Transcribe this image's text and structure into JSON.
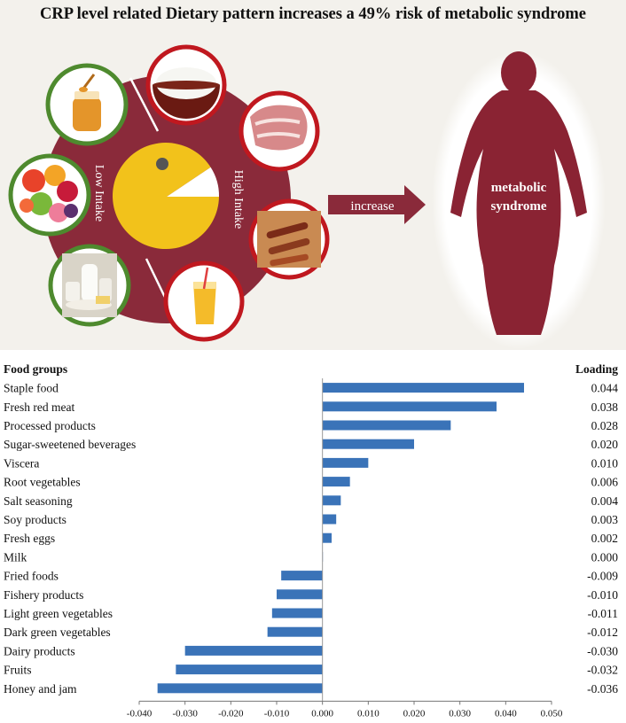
{
  "title": "CRP level related Dietary pattern increases a 49% risk of metabolic syndrome",
  "illustration": {
    "low_intake_label": "Low Intake",
    "high_intake_label": "High Intake",
    "arrow_label": "increase",
    "outcome_label": [
      "metabolic",
      "syndrome"
    ],
    "colors": {
      "wheel": "#8a2a3a",
      "pie": "#f2c21b",
      "low_ring": "#4e8a2e",
      "high_ring": "#c0181f",
      "figure": "#8a2333"
    },
    "low_intake_icons": [
      "honey-jar-icon",
      "fruit-bowl-icon",
      "dairy-icon"
    ],
    "high_intake_icons": [
      "rice-bowl-icon",
      "red-meat-icon",
      "processed-meat-icon",
      "juice-glass-icon"
    ]
  },
  "chart_data": {
    "type": "bar",
    "orientation": "horizontal",
    "row_header": "Food groups",
    "value_header": "Loading",
    "categories": [
      "Staple food",
      "Fresh red meat",
      "Processed products",
      "Sugar-sweetened beverages",
      "Viscera",
      "Root vegetables",
      "Salt seasoning",
      "Soy products",
      "Fresh eggs",
      "Milk",
      "Fried foods",
      "Fishery products",
      "Light green vegetables",
      "Dark green vegetables",
      "Dairy products",
      "Fruits",
      "Honey and jam"
    ],
    "values": [
      0.044,
      0.038,
      0.028,
      0.02,
      0.01,
      0.006,
      0.004,
      0.003,
      0.002,
      0.0,
      -0.009,
      -0.01,
      -0.011,
      -0.012,
      -0.03,
      -0.032,
      -0.036
    ],
    "value_labels": [
      "0.044",
      "0.038",
      "0.028",
      "0.020",
      "0.010",
      "0.006",
      "0.004",
      "0.003",
      "0.002",
      "0.000",
      "-0.009",
      "-0.010",
      "-0.011",
      "-0.012",
      "-0.030",
      "-0.032",
      "-0.036"
    ],
    "xlim": [
      -0.04,
      0.05
    ],
    "xticks": [
      "-0.040",
      "-0.030",
      "-0.020",
      "-0.010",
      "0.000",
      "0.010",
      "0.020",
      "0.030",
      "0.040",
      "0.050"
    ],
    "bar_color": "#3a73b8",
    "grid": false
  }
}
